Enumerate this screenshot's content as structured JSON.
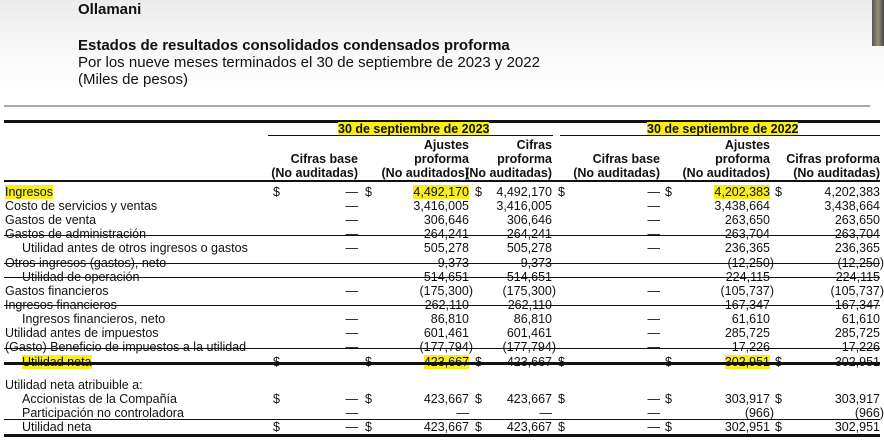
{
  "company": "Ollamani",
  "title": "Estados de resultados consolidados condensados proforma",
  "subtitle": "Por los nueve meses terminados el 30 de septiembre de 2023 y 2022",
  "units": "(Miles de pesos)",
  "highlight_color": "#f9ee1c",
  "periods": [
    "30 de septiembre de 2023",
    "30 de septiembre de 2022"
  ],
  "columns": [
    [
      "",
      "Cifras base",
      "(No auditadas)"
    ],
    [
      "Ajustes",
      "proforma",
      "(No auditados)"
    ],
    [
      "Cifras",
      "proforma",
      "(No auditadas)"
    ],
    [
      "",
      "Cifras base",
      "(No auditadas)"
    ],
    [
      "Ajustes",
      "proforma",
      "(No auditados)"
    ],
    [
      "",
      "Cifras proforma",
      "(No auditadas)"
    ]
  ],
  "rows": [
    {
      "label": "Ingresos",
      "dollar": true,
      "values": [
        "—",
        "4,492,170",
        "4,492,170",
        "—",
        "4,202,383",
        "4,202,383"
      ]
    },
    {
      "label": "Costo de servicios y ventas",
      "values": [
        "—",
        "3,416,005",
        "3,416,005",
        "—",
        "3,438,664",
        "3,438,664"
      ]
    },
    {
      "label": "Gastos de venta",
      "values": [
        "—",
        "306,646",
        "306,646",
        "—",
        "263,650",
        "263,650"
      ]
    },
    {
      "label": "Gastos de administración",
      "values": [
        "—",
        "264,241",
        "264,241",
        "—",
        "263,704",
        "263,704"
      ]
    },
    {
      "label": "Utilidad antes de otros ingresos o gastos",
      "indent": true,
      "values": [
        "—",
        "505,278",
        "505,278",
        "—",
        "236,365",
        "236,365"
      ]
    },
    {
      "label": "Otros ingresos (gastos), neto",
      "values": [
        "—",
        "9,373",
        "9,373",
        "—",
        "(12,250)",
        "(12,250)"
      ]
    },
    {
      "label": "Utilidad de operación",
      "indent": true,
      "values": [
        "—",
        "514,651",
        "514,651",
        "—",
        "224,115",
        "224,115"
      ]
    },
    {
      "label": "Gastos financieros",
      "values": [
        "—",
        "(175,300)",
        "(175,300)",
        "—",
        "(105,737)",
        "(105,737)"
      ]
    },
    {
      "label": "Ingresos financieros",
      "values": [
        "—",
        "262,110",
        "262,110",
        "—",
        "167,347",
        "167,347"
      ]
    },
    {
      "label": "Ingresos financieros, neto",
      "indent": true,
      "values": [
        "—",
        "86,810",
        "86,810",
        "—",
        "61,610",
        "61,610"
      ]
    },
    {
      "label": "Utilidad antes de impuestos",
      "values": [
        "—",
        "601,461",
        "601,461",
        "—",
        "285,725",
        "285,725"
      ]
    },
    {
      "label": "(Gasto) Beneficio de impuestos a la utilidad",
      "values": [
        "—",
        "(177,794)",
        "(177,794)",
        "—",
        "17,226",
        "17,226"
      ]
    },
    {
      "label": "Utilidad neta",
      "indent": true,
      "dollar": true,
      "values": [
        "—",
        "423,667",
        "423,667",
        "—",
        "302,951",
        "302,951"
      ]
    }
  ],
  "attrib_title": "Utilidad neta atribuible a:",
  "attrib_rows": [
    {
      "label": "Accionistas de la Compañía",
      "dollar": true,
      "values": [
        "—",
        "423,667",
        "423,667",
        "—",
        "303,917",
        "303,917"
      ]
    },
    {
      "label": "Participación no controladora",
      "values": [
        "—",
        "—",
        "—",
        "—",
        "(966)",
        "(966)"
      ]
    },
    {
      "label": "Utilidad neta",
      "dollar": true,
      "values": [
        "—",
        "423,667",
        "423,667",
        "—",
        "302,951",
        "302,951"
      ]
    }
  ],
  "currency": "$"
}
